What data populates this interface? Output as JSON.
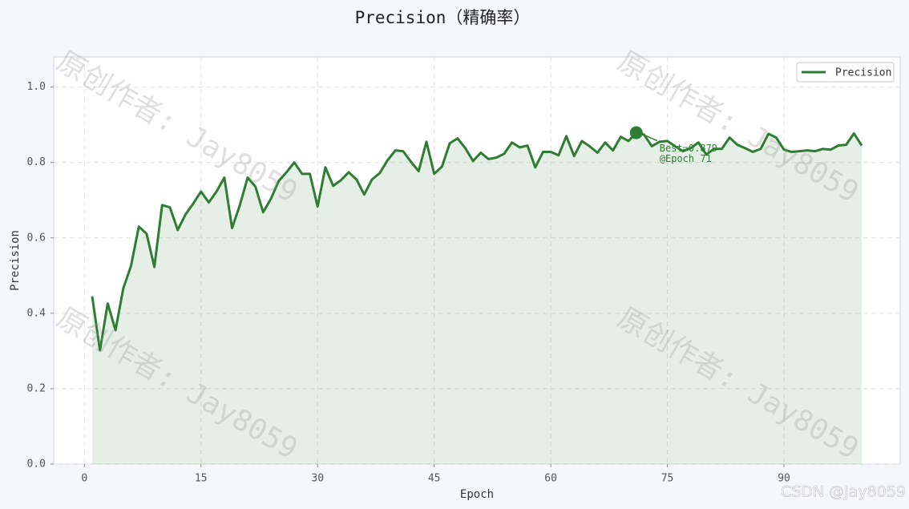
{
  "chart_data": {
    "type": "line",
    "title": "Precision（精确率）",
    "x_label": "Epoch",
    "y_label": "Precision",
    "x": [
      1,
      2,
      3,
      4,
      5,
      6,
      7,
      8,
      9,
      10,
      11,
      12,
      13,
      14,
      15,
      16,
      17,
      18,
      19,
      20,
      21,
      22,
      23,
      24,
      25,
      26,
      27,
      28,
      29,
      30,
      31,
      32,
      33,
      34,
      35,
      36,
      37,
      38,
      39,
      40,
      41,
      42,
      43,
      44,
      45,
      46,
      47,
      48,
      49,
      50,
      51,
      52,
      53,
      54,
      55,
      56,
      57,
      58,
      59,
      60,
      61,
      62,
      63,
      64,
      65,
      66,
      67,
      68,
      69,
      70,
      71,
      72,
      73,
      74,
      75,
      76,
      77,
      78,
      79,
      80,
      81,
      82,
      83,
      84,
      85,
      86,
      87,
      88,
      89,
      90,
      91,
      92,
      93,
      94,
      95,
      96,
      97,
      98,
      99,
      100
    ],
    "series": [
      {
        "name": "Precision",
        "color": "#2e7d32",
        "values": [
          0.445,
          0.302,
          0.426,
          0.355,
          0.466,
          0.526,
          0.63,
          0.611,
          0.523,
          0.687,
          0.681,
          0.621,
          0.662,
          0.691,
          0.723,
          0.694,
          0.723,
          0.76,
          0.626,
          0.687,
          0.76,
          0.736,
          0.668,
          0.704,
          0.751,
          0.774,
          0.8,
          0.77,
          0.77,
          0.683,
          0.787,
          0.738,
          0.753,
          0.774,
          0.755,
          0.715,
          0.755,
          0.772,
          0.806,
          0.832,
          0.83,
          0.802,
          0.777,
          0.855,
          0.77,
          0.789,
          0.851,
          0.864,
          0.838,
          0.804,
          0.826,
          0.809,
          0.813,
          0.823,
          0.853,
          0.84,
          0.845,
          0.787,
          0.828,
          0.828,
          0.819,
          0.87,
          0.817,
          0.857,
          0.843,
          0.826,
          0.853,
          0.832,
          0.868,
          0.857,
          0.879,
          0.874,
          0.843,
          0.855,
          0.857,
          0.843,
          0.83,
          0.838,
          0.853,
          0.821,
          0.836,
          0.836,
          0.866,
          0.847,
          0.838,
          0.828,
          0.836,
          0.876,
          0.866,
          0.834,
          0.828,
          0.83,
          0.832,
          0.83,
          0.836,
          0.834,
          0.845,
          0.847,
          0.877,
          0.845
        ]
      }
    ],
    "annotation": [
      "Best=0.879",
      "@Epoch 71"
    ],
    "xlim": [
      -3.95,
      104.95
    ],
    "xticks": [
      0,
      15,
      30,
      45,
      60,
      75,
      90
    ],
    "ylim": [
      0,
      1.08
    ],
    "yticks": [
      {
        "value": 0,
        "label": "0.0"
      },
      {
        "value": 0.2,
        "label": "0.2"
      },
      {
        "value": 0.4,
        "label": "0.4"
      },
      {
        "value": 0.6,
        "label": "0.6"
      },
      {
        "value": 0.8,
        "label": "0.8"
      },
      {
        "value": 1.0,
        "label": "1.0"
      }
    ],
    "grid": true,
    "legend": "upper right",
    "fill_under": true,
    "watermark": "原创作者: Jay8059",
    "footer_watermark": "CSDN @Jay8059"
  }
}
